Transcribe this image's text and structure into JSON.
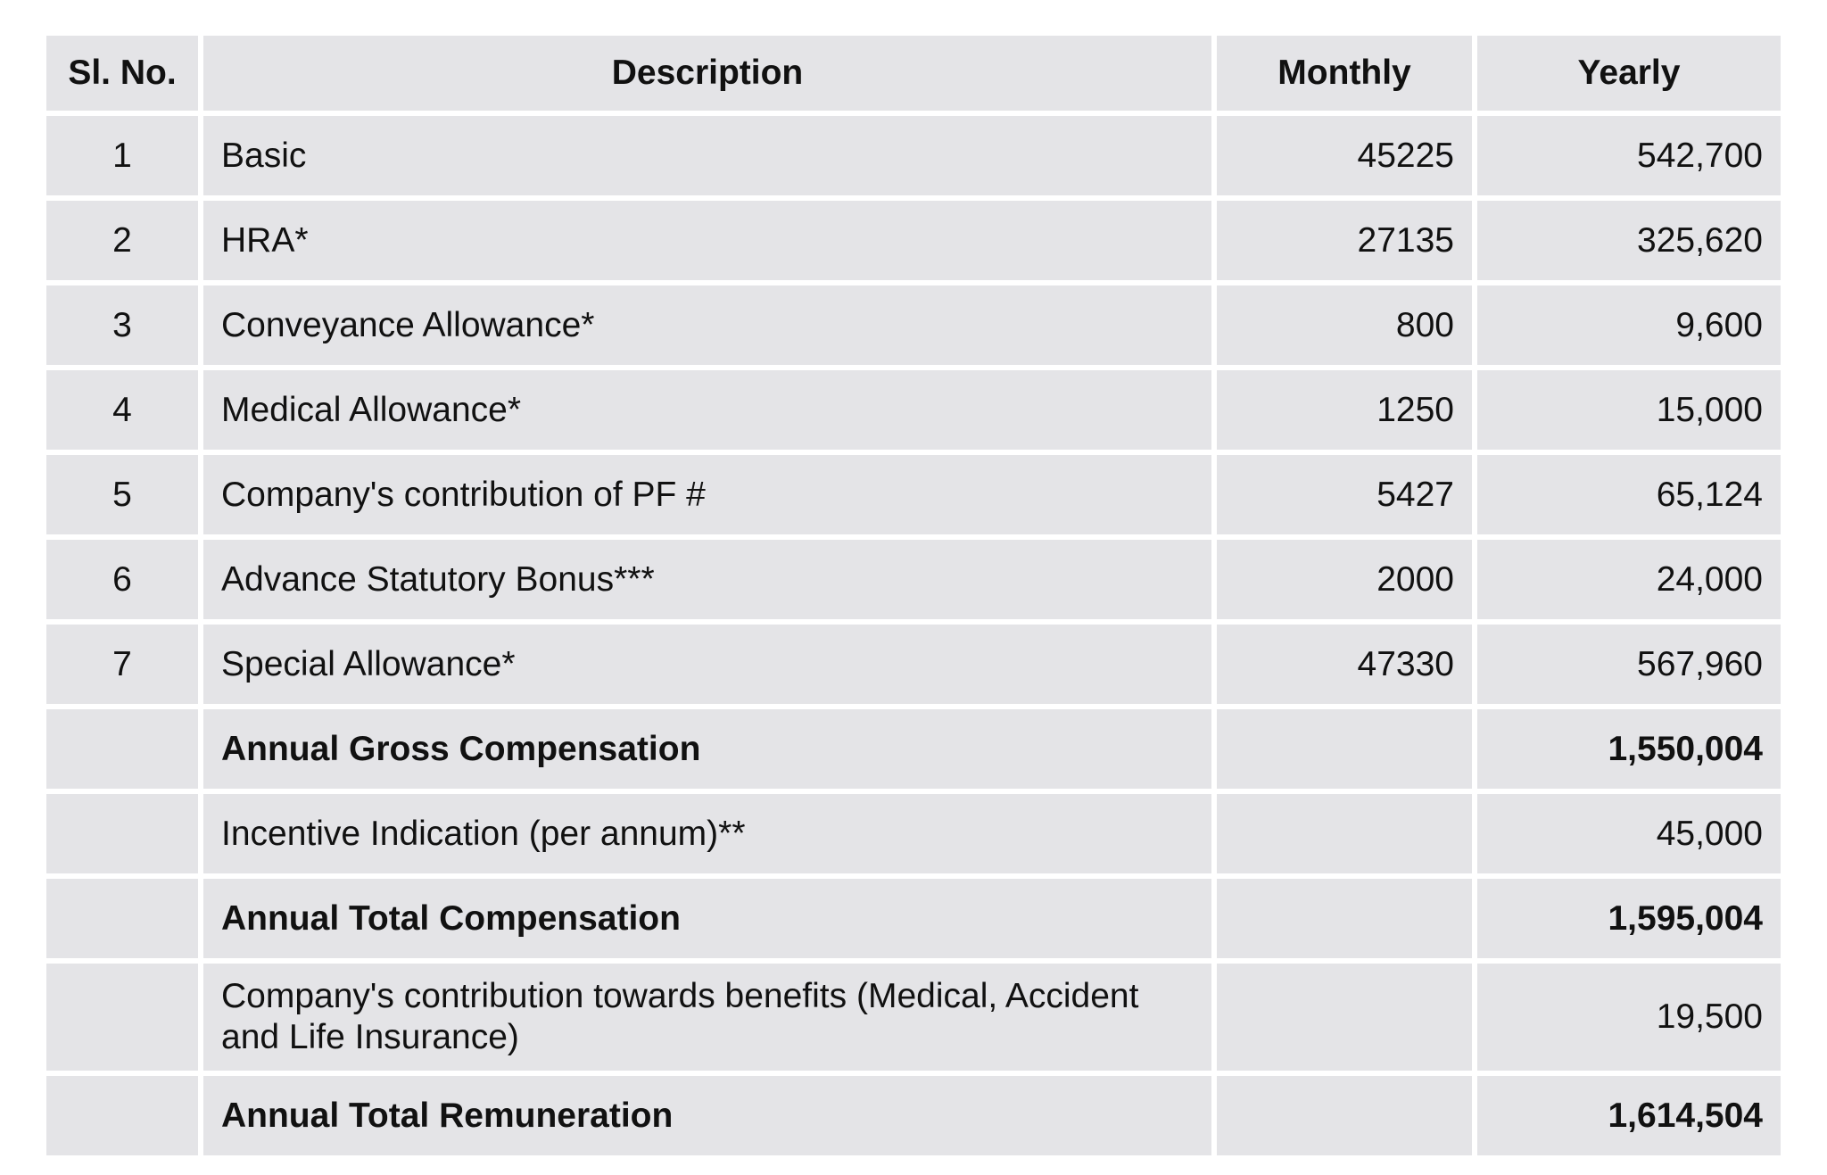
{
  "table": {
    "headers": {
      "sl_no": "Sl. No.",
      "description": "Description",
      "monthly": "Monthly",
      "yearly": "Yearly"
    },
    "rows": [
      {
        "sl": "1",
        "description": "Basic",
        "monthly": "45225",
        "yearly": "542,700",
        "bold": false
      },
      {
        "sl": "2",
        "description": "HRA*",
        "monthly": "27135",
        "yearly": "325,620",
        "bold": false
      },
      {
        "sl": "3",
        "description": "Conveyance Allowance*",
        "monthly": "800",
        "yearly": "9,600",
        "bold": false
      },
      {
        "sl": "4",
        "description": "Medical Allowance*",
        "monthly": "1250",
        "yearly": "15,000",
        "bold": false
      },
      {
        "sl": "5",
        "description": "Company's contribution of PF #",
        "monthly": "5427",
        "yearly": "65,124",
        "bold": false
      },
      {
        "sl": "6",
        "description": "Advance Statutory Bonus***",
        "monthly": "2000",
        "yearly": "24,000",
        "bold": false
      },
      {
        "sl": "7",
        "description": "Special Allowance*",
        "monthly": "47330",
        "yearly": "567,960",
        "bold": false
      },
      {
        "sl": "",
        "description": "Annual Gross Compensation",
        "monthly": "",
        "yearly": "1,550,004",
        "bold": true
      },
      {
        "sl": "",
        "description": "Incentive Indication (per annum)**",
        "monthly": "",
        "yearly": "45,000",
        "bold": false
      },
      {
        "sl": "",
        "description": "Annual Total Compensation",
        "monthly": "",
        "yearly": "1,595,004",
        "bold": true
      },
      {
        "sl": "",
        "description": "Company's contribution towards benefits (Medical, Accident and Life Insurance)",
        "monthly": "",
        "yearly": "19,500",
        "bold": false,
        "tall": true
      },
      {
        "sl": "",
        "description": "Annual Total Remuneration",
        "monthly": "",
        "yearly": "1,614,504",
        "bold": true
      }
    ]
  }
}
